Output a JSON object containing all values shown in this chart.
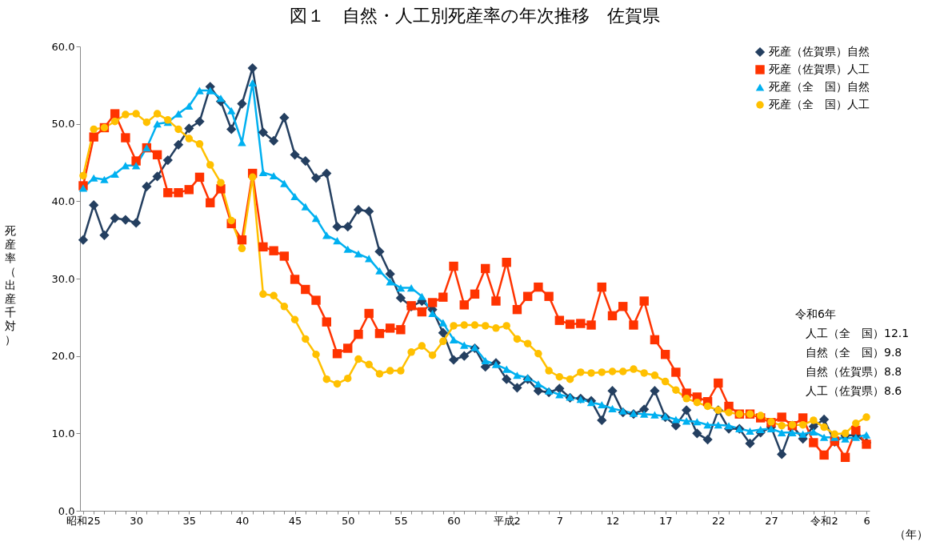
{
  "chart_data": {
    "type": "line",
    "title": "図１　自然・人工別死産率の年次推移　佐賀県",
    "xlabel": "（年）",
    "ylabel": "死産率（出産千対）",
    "categories": [
      "昭和25",
      null,
      null,
      null,
      null,
      "30",
      null,
      null,
      null,
      null,
      "35",
      null,
      null,
      null,
      null,
      "40",
      null,
      null,
      null,
      null,
      "45",
      null,
      null,
      null,
      null,
      "50",
      null,
      null,
      null,
      null,
      "55",
      null,
      null,
      null,
      null,
      "60",
      null,
      null,
      null,
      null,
      "平成2",
      null,
      null,
      null,
      null,
      "7",
      null,
      null,
      null,
      null,
      "12",
      null,
      null,
      null,
      null,
      "17",
      null,
      null,
      null,
      null,
      "22",
      null,
      null,
      null,
      null,
      "27",
      null,
      null,
      null,
      null,
      "令和2",
      null,
      null,
      null,
      "6"
    ],
    "series": [
      {
        "name": "死産（佐賀県）自然",
        "color": "#243f60",
        "marker": "diamond",
        "values": [
          35.0,
          39.5,
          35.6,
          37.8,
          37.6,
          37.2,
          41.9,
          43.2,
          45.3,
          47.3,
          49.4,
          50.3,
          54.8,
          52.9,
          49.3,
          52.6,
          57.2,
          48.9,
          47.8,
          50.8,
          46.0,
          45.2,
          43.0,
          43.6,
          36.7,
          36.7,
          38.9,
          38.7,
          33.5,
          30.6,
          27.5,
          26.4,
          27.1,
          26.0,
          23.0,
          19.5,
          20.0,
          21.0,
          18.6,
          19.1,
          17.0,
          15.9,
          17.0,
          15.5,
          15.3,
          15.8,
          14.6,
          14.5,
          14.2,
          11.7,
          15.5,
          12.7,
          12.5,
          13.1,
          15.5,
          12.1,
          11.0,
          13.0,
          10.0,
          9.2,
          13.0,
          10.6,
          10.6,
          8.7,
          10.1,
          10.8,
          7.3,
          11.0,
          9.3,
          10.9,
          11.8,
          8.9,
          9.7,
          9.8,
          8.8
        ]
      },
      {
        "name": "死産（佐賀県）人工",
        "color": "#ff3300",
        "marker": "square",
        "values": [
          42.0,
          48.3,
          49.5,
          51.3,
          48.2,
          45.2,
          46.9,
          46.0,
          41.1,
          41.1,
          41.5,
          43.1,
          39.8,
          41.6,
          37.1,
          35.0,
          43.6,
          34.1,
          33.6,
          32.9,
          29.9,
          28.6,
          27.2,
          24.4,
          20.3,
          21.0,
          22.8,
          25.5,
          22.9,
          23.6,
          23.4,
          26.5,
          25.7,
          26.9,
          27.6,
          31.6,
          26.6,
          28.0,
          31.3,
          27.1,
          32.1,
          26.0,
          27.7,
          28.9,
          27.7,
          24.6,
          24.1,
          24.2,
          24.0,
          28.9,
          25.2,
          26.4,
          24.0,
          27.1,
          22.1,
          20.2,
          17.9,
          15.2,
          14.7,
          14.1,
          16.5,
          13.5,
          12.5,
          12.5,
          12.0,
          11.4,
          12.1,
          11.0,
          12.0,
          8.8,
          7.2,
          9.0,
          6.9,
          10.4,
          8.6
        ]
      },
      {
        "name": "死産（全　国）自然",
        "color": "#00b0f0",
        "marker": "triangle",
        "values": [
          41.7,
          43.0,
          42.8,
          43.5,
          44.6,
          44.6,
          46.9,
          50.0,
          50.2,
          51.3,
          52.3,
          54.3,
          54.3,
          53.3,
          51.7,
          47.6,
          55.3,
          43.7,
          43.3,
          42.3,
          40.6,
          39.3,
          37.8,
          35.6,
          34.9,
          33.8,
          33.2,
          32.6,
          31.0,
          29.6,
          28.8,
          28.8,
          27.7,
          25.5,
          24.3,
          22.1,
          21.4,
          21.1,
          19.4,
          18.9,
          18.3,
          17.5,
          17.2,
          16.4,
          15.5,
          15.0,
          14.7,
          14.4,
          14.0,
          13.7,
          13.2,
          12.9,
          12.6,
          12.5,
          12.4,
          12.2,
          11.8,
          11.6,
          11.5,
          11.1,
          11.1,
          11.0,
          10.6,
          10.3,
          10.5,
          10.6,
          10.1,
          10.1,
          9.9,
          10.2,
          9.5,
          9.5,
          9.3,
          9.5,
          9.8
        ]
      },
      {
        "name": "死産（全　国）人工",
        "color": "#ffc000",
        "marker": "circle",
        "values": [
          43.3,
          49.3,
          49.5,
          50.3,
          51.2,
          51.3,
          50.2,
          51.3,
          50.5,
          49.3,
          48.1,
          47.4,
          44.7,
          42.4,
          37.5,
          33.9,
          43.1,
          28.0,
          27.8,
          26.4,
          24.7,
          22.2,
          20.2,
          17.0,
          16.4,
          17.1,
          19.6,
          18.9,
          17.7,
          18.1,
          18.1,
          20.5,
          21.3,
          20.1,
          21.9,
          23.9,
          24.0,
          24.0,
          23.9,
          23.6,
          23.9,
          22.2,
          21.6,
          20.3,
          18.1,
          17.3,
          17.0,
          17.9,
          17.8,
          17.9,
          18.0,
          18.0,
          18.3,
          17.8,
          17.5,
          16.7,
          15.6,
          14.5,
          14.0,
          13.5,
          13.0,
          12.7,
          12.5,
          12.5,
          12.3,
          11.5,
          11.0,
          11.1,
          11.1,
          11.7,
          10.8,
          9.9,
          10.0,
          11.3,
          12.1
        ]
      }
    ],
    "ylim": [
      0,
      60
    ],
    "yticks": [
      {
        "value": 0,
        "label": "0.0"
      },
      {
        "value": 10,
        "label": "10.0"
      },
      {
        "value": 20,
        "label": "20.0"
      },
      {
        "value": 30,
        "label": "30.0"
      },
      {
        "value": 40,
        "label": "40.0"
      },
      {
        "value": 50,
        "label": "50.0"
      },
      {
        "value": 60,
        "label": "60.0"
      }
    ],
    "grid": false,
    "legend": "top right",
    "line_style": "solid",
    "annotations": [
      "令和6年",
      "人工（全　国）12.1",
      "自然（全　国）9.8",
      "自然（佐賀県）8.8",
      "人工（佐賀県）8.6"
    ]
  }
}
